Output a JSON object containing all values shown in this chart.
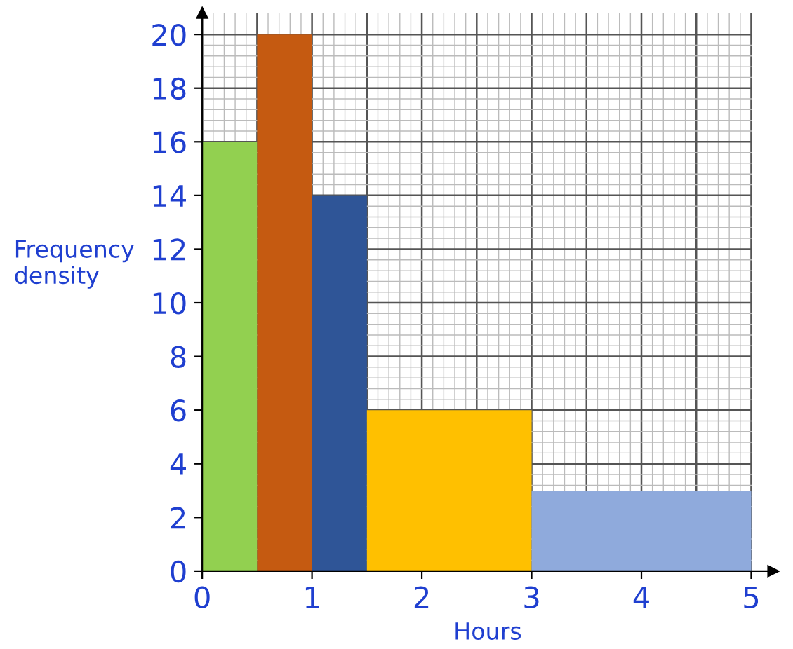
{
  "chart_data": {
    "type": "histogram",
    "xlabel": "Hours",
    "ylabel": "Frequency\ndensity",
    "bins": [
      0,
      0.5,
      1,
      1.5,
      3,
      5
    ],
    "values": [
      16,
      20,
      14,
      6,
      3
    ],
    "colors": [
      "#92d050",
      "#c55a11",
      "#2f5597",
      "#ffc000",
      "#8faadc"
    ],
    "xlim": [
      0,
      5.2
    ],
    "ylim": [
      0,
      20.8
    ],
    "xticks": [
      0,
      1,
      2,
      3,
      4,
      5
    ],
    "yticks": [
      0,
      2,
      4,
      6,
      8,
      10,
      12,
      14,
      16,
      18,
      20
    ],
    "grid": true
  }
}
